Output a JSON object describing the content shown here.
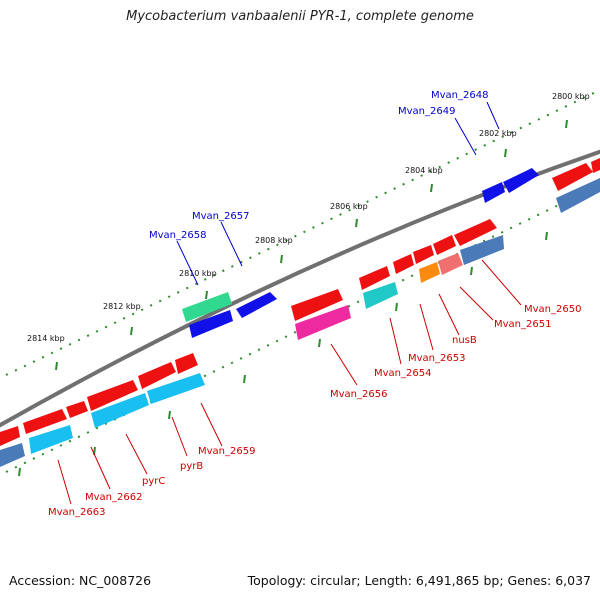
{
  "title": "Mycobacterium vanbaalenii PYR-1, complete genome",
  "accession_label": "Accession: NC_008726",
  "topology_label": "Topology: circular; Length: 6,491,865 bp; Genes: 6,037",
  "ruler_labels": [
    "2800 kbp",
    "2802 kbp",
    "2804 kbp",
    "2806 kbp",
    "2808 kbp",
    "2810 kbp",
    "2812 kbp",
    "2814 kbp"
  ],
  "forward_gene_labels": [
    "Mvan_2648",
    "Mvan_2649",
    "Mvan_2657",
    "Mvan_2658"
  ],
  "reverse_gene_labels": [
    "Mvan_2650",
    "Mvan_2651",
    "nusB",
    "Mvan_2653",
    "Mvan_2654",
    "Mvan_2656",
    "Mvan_2659",
    "pyrB",
    "pyrC",
    "Mvan_2662",
    "Mvan_2663"
  ],
  "colors": {
    "backbone": "#808080",
    "forward_gene": "#1010e8",
    "cds": "#ee1111",
    "teal_gene": "#20c8c8",
    "sky_gene": "#19bff0",
    "steel_gene": "#4a7ab8",
    "magenta_gene": "#ee2aa0",
    "green_gene": "#30d890",
    "orange_gene": "#ff8a10",
    "salmon_gene": "#f07070",
    "tick_green": "#228b22"
  }
}
